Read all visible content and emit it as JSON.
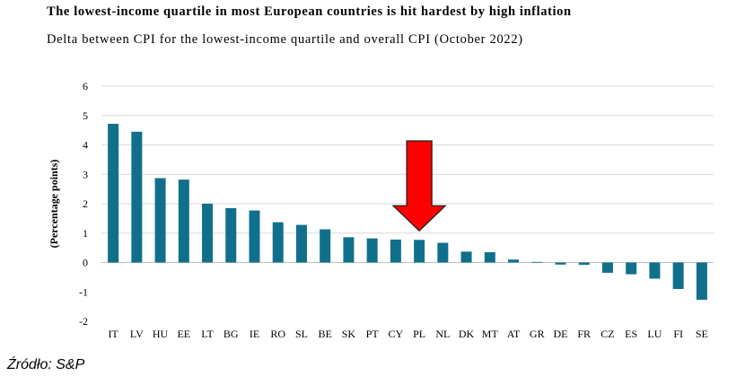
{
  "chart_data": {
    "type": "bar",
    "title": "The lowest-income quartile in most European countries is hit hardest by high inflation",
    "subtitle": "Delta between CPI for the lowest-income quartile and overall CPI (October 2022)",
    "xlabel": "",
    "ylabel": "(Percentage points)",
    "ylim": [
      -2,
      6
    ],
    "yticks": [
      "6",
      "5",
      "4",
      "3",
      "2",
      "1",
      "0",
      "-1",
      "-2"
    ],
    "ytick_values": [
      6,
      5,
      4,
      3,
      2,
      1,
      0,
      -1,
      -2
    ],
    "categories": [
      "IT",
      "LV",
      "HU",
      "EE",
      "LT",
      "BG",
      "IE",
      "RO",
      "SL",
      "BE",
      "SK",
      "PT",
      "CY",
      "PL",
      "NL",
      "DK",
      "MT",
      "AT",
      "GR",
      "DE",
      "FR",
      "CZ",
      "ES",
      "LU",
      "FI",
      "SE"
    ],
    "values": [
      4.72,
      4.45,
      2.87,
      2.82,
      2.0,
      1.85,
      1.77,
      1.37,
      1.28,
      1.13,
      0.86,
      0.82,
      0.78,
      0.77,
      0.67,
      0.37,
      0.35,
      0.1,
      0.02,
      -0.07,
      -0.08,
      -0.35,
      -0.4,
      -0.55,
      -0.9,
      -1.27
    ],
    "bar_color": "#10708b",
    "grid": true,
    "highlight": {
      "category": "PL",
      "marker": "red-down-arrow",
      "color": "#ff0000"
    }
  },
  "source": "Źródło: S&P"
}
